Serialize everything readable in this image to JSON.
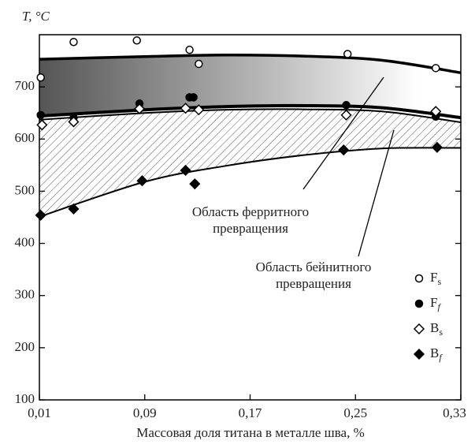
{
  "chart_data": {
    "type": "scatter",
    "ylabel": "T, °C",
    "xlabel": "Массовая доля титана в металле шва, %",
    "xlim": [
      0.01,
      0.33
    ],
    "xticks": [
      {
        "value": 0.01,
        "label": "0,01"
      },
      {
        "value": 0.09,
        "label": "0,09"
      },
      {
        "value": 0.17,
        "label": "0,17"
      },
      {
        "value": 0.25,
        "label": "0,25"
      },
      {
        "value": 0.33,
        "label": "0,33"
      }
    ],
    "ylim": [
      100,
      800
    ],
    "yticks": [
      100,
      200,
      300,
      400,
      500,
      600,
      700
    ],
    "series": [
      {
        "name": "Fs",
        "marker": "circle-open",
        "color": "#000000",
        "x": [
          0.011,
          0.036,
          0.084,
          0.124,
          0.131,
          0.244,
          0.311
        ],
        "values": [
          718,
          786,
          789,
          771,
          744,
          763,
          736
        ]
      },
      {
        "name": "Ff",
        "marker": "circle",
        "color": "#000000",
        "x": [
          0.011,
          0.036,
          0.086,
          0.124,
          0.127,
          0.243,
          0.311
        ],
        "values": [
          646,
          641,
          668,
          680,
          680,
          665,
          643
        ]
      },
      {
        "name": "Bs",
        "marker": "diamond-open",
        "color": "#000000",
        "x": [
          0.012,
          0.036,
          0.086,
          0.121,
          0.131,
          0.243,
          0.311
        ],
        "values": [
          627,
          633,
          658,
          659,
          656,
          646,
          653
        ]
      },
      {
        "name": "Bf",
        "marker": "diamond",
        "color": "#000000",
        "x": [
          0.011,
          0.036,
          0.088,
          0.121,
          0.128,
          0.241,
          0.312
        ],
        "values": [
          454,
          466,
          520,
          540,
          514,
          579,
          584
        ]
      }
    ],
    "curves": [
      {
        "x": [
          0.01,
          0.09,
          0.15,
          0.21,
          0.27,
          0.33
        ],
        "values": [
          753,
          758,
          761,
          759,
          751,
          727
        ]
      },
      {
        "x": [
          0.01,
          0.09,
          0.15,
          0.21,
          0.27,
          0.33
        ],
        "values": [
          644,
          656,
          662,
          664,
          660,
          641
        ]
      },
      {
        "x": [
          0.01,
          0.09,
          0.15,
          0.21,
          0.27,
          0.33
        ],
        "values": [
          637,
          650,
          656,
          657,
          653,
          632
        ]
      },
      {
        "x": [
          0.01,
          0.09,
          0.15,
          0.21,
          0.27,
          0.33
        ],
        "values": [
          451,
          518,
          548,
          569,
          582,
          583
        ]
      }
    ],
    "annotations": [
      {
        "lines": [
          "Область ферритного",
          "превращения"
        ]
      },
      {
        "lines": [
          "Область бейнитного",
          "превращения"
        ]
      }
    ]
  }
}
